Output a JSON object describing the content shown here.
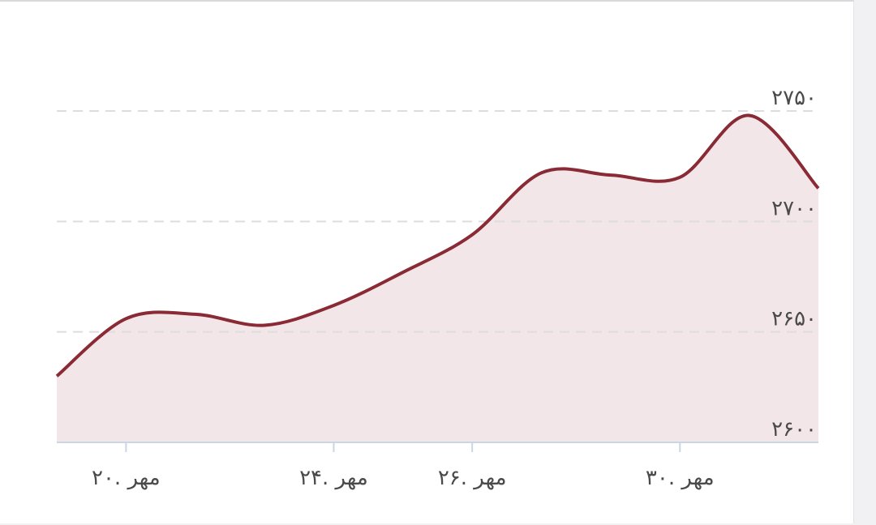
{
  "chart_data": {
    "type": "area",
    "categories": [
      null,
      "۲۰. مهر",
      null,
      null,
      "۲۴. مهر",
      null,
      "۲۶. مهر",
      null,
      null,
      "۳۰. مهر",
      null,
      null
    ],
    "values": [
      2630,
      2656,
      2658,
      2653,
      2662,
      2677,
      2694,
      2722,
      2721,
      2720,
      2748,
      2715
    ],
    "color": "#8a2a35",
    "fill_color": "#f3e6e9",
    "ylim": [
      2600,
      2750
    ],
    "yticks": [
      {
        "value": 2600,
        "label": "۲۶۰۰"
      },
      {
        "value": 2650,
        "label": "۲۶۵۰"
      },
      {
        "value": 2700,
        "label": "۲۷۰۰"
      },
      {
        "value": 2750,
        "label": "۲۷۵۰"
      }
    ],
    "grid": true
  }
}
